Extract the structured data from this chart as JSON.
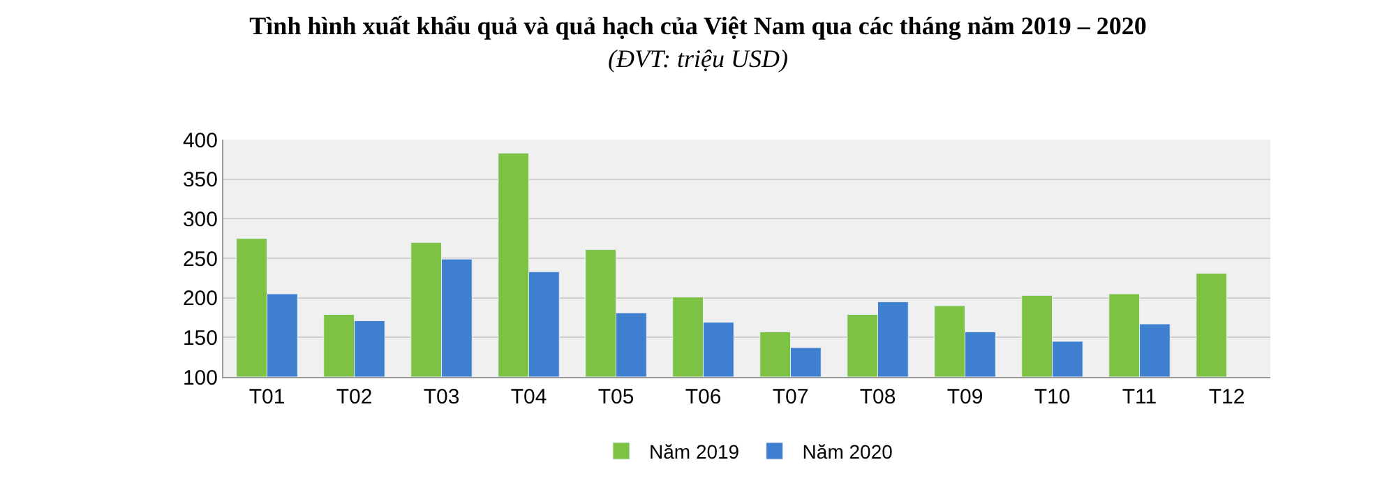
{
  "chart_data": {
    "type": "bar",
    "title": "Tình hình xuất khẩu quả và quả hạch của Việt Nam qua các tháng năm 2019 – 2020",
    "subtitle": "(ĐVT: triệu USD)",
    "categories": [
      "T01",
      "T02",
      "T03",
      "T04",
      "T05",
      "T06",
      "T07",
      "T08",
      "T09",
      "T10",
      "T11",
      "T12"
    ],
    "series": [
      {
        "name": "Năm 2019",
        "color": "#7dc242",
        "values": [
          275,
          179,
          270,
          383,
          261,
          201,
          157,
          179,
          190,
          203,
          205,
          231
        ]
      },
      {
        "name": "Năm 2020",
        "color": "#3f7fcf",
        "values": [
          205,
          171,
          249,
          233,
          181,
          169,
          137,
          195,
          157,
          145,
          167,
          null
        ]
      }
    ],
    "ylim": [
      100,
      400
    ],
    "yticks": [
      100,
      150,
      200,
      250,
      300,
      350,
      400
    ],
    "grid": "y",
    "legend": "bottom"
  }
}
